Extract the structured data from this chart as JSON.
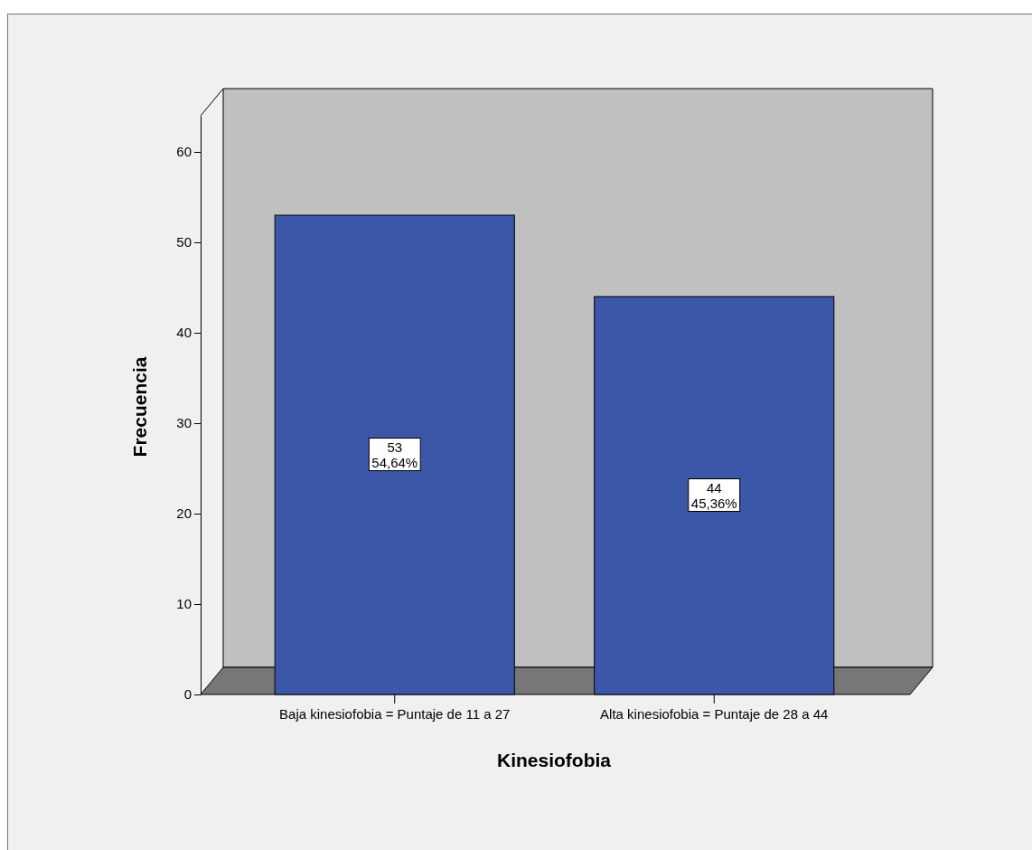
{
  "chart_data": {
    "type": "bar",
    "xlabel": "Kinesiofobia",
    "ylabel": "Frecuencia",
    "categories": [
      "Baja kinesiofobia = Puntaje de 11 a 27",
      "Alta kinesiofobia = Puntaje de 28 a 44"
    ],
    "values": [
      53,
      44
    ],
    "color": "#3c56a8",
    "value_labels": [
      "53\n54,64%",
      "44\n45,36%"
    ],
    "ylim": [
      0,
      64
    ],
    "yticks": [
      0,
      10,
      20,
      30,
      40,
      50,
      60
    ],
    "grid": false
  }
}
